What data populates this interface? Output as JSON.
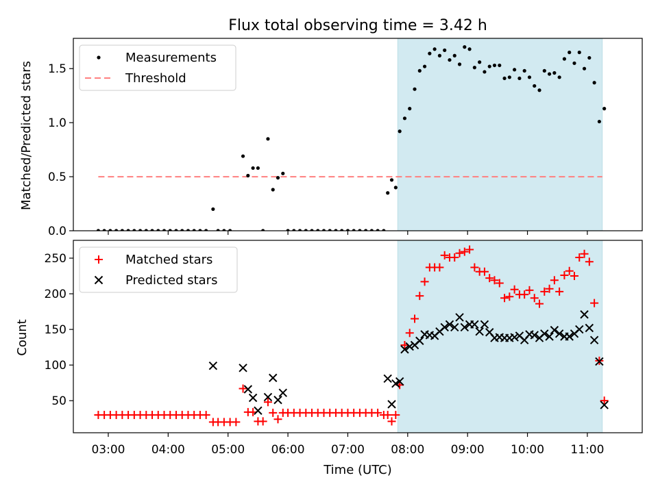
{
  "figure": {
    "title": "Flux total observing time = 3.42 h"
  },
  "colors": {
    "shade": "#add8e6",
    "threshold": "#ff7f7f",
    "matched": "#ff0000",
    "predicted": "#000000",
    "measurement": "#000000"
  },
  "chart_data": [
    {
      "type": "scatter",
      "ylabel": "Matched/Predicted stars",
      "ylim": [
        0,
        1.78
      ],
      "xlim": [
        "02:25",
        "11:55"
      ],
      "yticks": [
        "0.0",
        "0.5",
        "1.0",
        "1.5"
      ],
      "ytick_values": [
        0,
        0.5,
        1.0,
        1.5
      ],
      "legend": {
        "position": "top-left",
        "entries": [
          "Measurements",
          "Threshold"
        ]
      },
      "threshold": 0.5,
      "threshold_range": [
        "02:50",
        "11:15"
      ],
      "shaded_span": [
        "07:50",
        "11:15"
      ],
      "series": [
        {
          "name": "Measurements",
          "points": [
            [
              "02:50",
              0
            ],
            [
              "02:56",
              0
            ],
            [
              "03:02",
              0
            ],
            [
              "03:08",
              0
            ],
            [
              "03:14",
              0
            ],
            [
              "03:20",
              0
            ],
            [
              "03:26",
              0
            ],
            [
              "03:32",
              0
            ],
            [
              "03:38",
              0
            ],
            [
              "03:44",
              0
            ],
            [
              "03:50",
              0
            ],
            [
              "03:56",
              0
            ],
            [
              "04:02",
              0
            ],
            [
              "04:08",
              0
            ],
            [
              "04:14",
              0
            ],
            [
              "04:20",
              0
            ],
            [
              "04:26",
              0
            ],
            [
              "04:32",
              0
            ],
            [
              "04:38",
              0
            ],
            [
              "04:45",
              0.2
            ],
            [
              "04:50",
              0
            ],
            [
              "04:56",
              0
            ],
            [
              "05:02",
              0
            ],
            [
              "05:15",
              0.69
            ],
            [
              "05:20",
              0.51
            ],
            [
              "05:25",
              0.58
            ],
            [
              "05:30",
              0.58
            ],
            [
              "05:35",
              0
            ],
            [
              "05:40",
              0.85
            ],
            [
              "05:45",
              0.38
            ],
            [
              "05:50",
              0.49
            ],
            [
              "05:55",
              0.53
            ],
            [
              "06:00",
              0
            ],
            [
              "06:06",
              0
            ],
            [
              "06:12",
              0
            ],
            [
              "06:18",
              0
            ],
            [
              "06:24",
              0
            ],
            [
              "06:30",
              0
            ],
            [
              "06:36",
              0
            ],
            [
              "06:42",
              0
            ],
            [
              "06:48",
              0
            ],
            [
              "06:54",
              0
            ],
            [
              "07:00",
              0
            ],
            [
              "07:06",
              0
            ],
            [
              "07:12",
              0
            ],
            [
              "07:18",
              0
            ],
            [
              "07:24",
              0
            ],
            [
              "07:30",
              0
            ],
            [
              "07:36",
              0
            ],
            [
              "07:40",
              0.35
            ],
            [
              "07:44",
              0.47
            ],
            [
              "07:48",
              0.4
            ],
            [
              "07:52",
              0.92
            ],
            [
              "07:57",
              1.04
            ],
            [
              "08:02",
              1.13
            ],
            [
              "08:07",
              1.31
            ],
            [
              "08:12",
              1.48
            ],
            [
              "08:17",
              1.52
            ],
            [
              "08:22",
              1.64
            ],
            [
              "08:27",
              1.68
            ],
            [
              "08:32",
              1.62
            ],
            [
              "08:37",
              1.67
            ],
            [
              "08:42",
              1.58
            ],
            [
              "08:47",
              1.62
            ],
            [
              "08:52",
              1.54
            ],
            [
              "08:57",
              1.7
            ],
            [
              "09:02",
              1.68
            ],
            [
              "09:07",
              1.51
            ],
            [
              "09:12",
              1.56
            ],
            [
              "09:17",
              1.47
            ],
            [
              "09:22",
              1.52
            ],
            [
              "09:27",
              1.53
            ],
            [
              "09:32",
              1.53
            ],
            [
              "09:37",
              1.41
            ],
            [
              "09:42",
              1.42
            ],
            [
              "09:47",
              1.49
            ],
            [
              "09:52",
              1.41
            ],
            [
              "09:57",
              1.48
            ],
            [
              "10:02",
              1.42
            ],
            [
              "10:07",
              1.34
            ],
            [
              "10:12",
              1.3
            ],
            [
              "10:17",
              1.48
            ],
            [
              "10:22",
              1.45
            ],
            [
              "10:27",
              1.46
            ],
            [
              "10:32",
              1.42
            ],
            [
              "10:37",
              1.59
            ],
            [
              "10:42",
              1.65
            ],
            [
              "10:47",
              1.55
            ],
            [
              "10:52",
              1.65
            ],
            [
              "10:57",
              1.5
            ],
            [
              "11:02",
              1.6
            ],
            [
              "11:07",
              1.37
            ],
            [
              "11:12",
              1.01
            ],
            [
              "11:17",
              1.13
            ]
          ]
        }
      ]
    },
    {
      "type": "scatter",
      "ylabel": "Count",
      "xlabel": "Time (UTC)",
      "ylim": [
        5,
        275
      ],
      "xlim": [
        "02:25",
        "11:55"
      ],
      "yticks": [
        "50",
        "100",
        "150",
        "200",
        "250"
      ],
      "ytick_values": [
        50,
        100,
        150,
        200,
        250
      ],
      "xticks": [
        "03:00",
        "04:00",
        "05:00",
        "06:00",
        "07:00",
        "08:00",
        "09:00",
        "10:00",
        "11:00"
      ],
      "legend": {
        "position": "top-left",
        "entries": [
          "Matched stars",
          "Predicted stars"
        ]
      },
      "shaded_span": [
        "07:50",
        "11:15"
      ],
      "series": [
        {
          "name": "Matched stars",
          "marker": "plus",
          "points": [
            [
              "02:50",
              30
            ],
            [
              "02:56",
              30
            ],
            [
              "03:02",
              30
            ],
            [
              "03:08",
              30
            ],
            [
              "03:14",
              30
            ],
            [
              "03:20",
              30
            ],
            [
              "03:26",
              30
            ],
            [
              "03:32",
              30
            ],
            [
              "03:38",
              30
            ],
            [
              "03:44",
              30
            ],
            [
              "03:50",
              30
            ],
            [
              "03:56",
              30
            ],
            [
              "04:02",
              30
            ],
            [
              "04:08",
              30
            ],
            [
              "04:14",
              30
            ],
            [
              "04:20",
              30
            ],
            [
              "04:26",
              30
            ],
            [
              "04:32",
              30
            ],
            [
              "04:38",
              30
            ],
            [
              "04:45",
              20
            ],
            [
              "04:50",
              20
            ],
            [
              "04:56",
              20
            ],
            [
              "05:02",
              20
            ],
            [
              "05:08",
              20
            ],
            [
              "05:15",
              67
            ],
            [
              "05:20",
              34
            ],
            [
              "05:25",
              34
            ],
            [
              "05:30",
              21
            ],
            [
              "05:35",
              21
            ],
            [
              "05:40",
              48
            ],
            [
              "05:45",
              33
            ],
            [
              "05:50",
              24
            ],
            [
              "05:55",
              33
            ],
            [
              "06:00",
              33
            ],
            [
              "06:06",
              33
            ],
            [
              "06:12",
              33
            ],
            [
              "06:18",
              33
            ],
            [
              "06:24",
              33
            ],
            [
              "06:30",
              33
            ],
            [
              "06:36",
              33
            ],
            [
              "06:42",
              33
            ],
            [
              "06:48",
              33
            ],
            [
              "06:54",
              33
            ],
            [
              "07:00",
              33
            ],
            [
              "07:06",
              33
            ],
            [
              "07:12",
              33
            ],
            [
              "07:18",
              33
            ],
            [
              "07:24",
              33
            ],
            [
              "07:30",
              33
            ],
            [
              "07:36",
              30
            ],
            [
              "07:40",
              30
            ],
            [
              "07:44",
              21
            ],
            [
              "07:48",
              30
            ],
            [
              "07:52",
              72
            ],
            [
              "07:57",
              128
            ],
            [
              "08:02",
              145
            ],
            [
              "08:07",
              165
            ],
            [
              "08:12",
              197
            ],
            [
              "08:17",
              217
            ],
            [
              "08:22",
              237
            ],
            [
              "08:27",
              237
            ],
            [
              "08:32",
              237
            ],
            [
              "08:37",
              254
            ],
            [
              "08:42",
              251
            ],
            [
              "08:47",
              251
            ],
            [
              "08:52",
              257
            ],
            [
              "08:57",
              259
            ],
            [
              "09:02",
              262
            ],
            [
              "09:07",
              237
            ],
            [
              "09:12",
              231
            ],
            [
              "09:17",
              231
            ],
            [
              "09:22",
              222
            ],
            [
              "09:27",
              219
            ],
            [
              "09:32",
              215
            ],
            [
              "09:37",
              194
            ],
            [
              "09:42",
              196
            ],
            [
              "09:47",
              206
            ],
            [
              "09:52",
              199
            ],
            [
              "09:57",
              199
            ],
            [
              "10:02",
              205
            ],
            [
              "10:07",
              194
            ],
            [
              "10:12",
              186
            ],
            [
              "10:17",
              203
            ],
            [
              "10:22",
              207
            ],
            [
              "10:27",
              219
            ],
            [
              "10:32",
              203
            ],
            [
              "10:37",
              226
            ],
            [
              "10:42",
              232
            ],
            [
              "10:47",
              225
            ],
            [
              "10:52",
              251
            ],
            [
              "10:57",
              256
            ],
            [
              "11:02",
              245
            ],
            [
              "11:07",
              187
            ],
            [
              "11:12",
              106
            ],
            [
              "11:17",
              50
            ]
          ]
        },
        {
          "name": "Predicted stars",
          "marker": "x",
          "points": [
            [
              "04:45",
              99
            ],
            [
              "05:15",
              96
            ],
            [
              "05:20",
              66
            ],
            [
              "05:25",
              54
            ],
            [
              "05:30",
              36
            ],
            [
              "05:40",
              55
            ],
            [
              "05:45",
              82
            ],
            [
              "05:50",
              51
            ],
            [
              "05:55",
              61
            ],
            [
              "07:40",
              81
            ],
            [
              "07:44",
              45
            ],
            [
              "07:48",
              74
            ],
            [
              "07:52",
              77
            ],
            [
              "07:57",
              122
            ],
            [
              "08:02",
              126
            ],
            [
              "08:07",
              128
            ],
            [
              "08:12",
              134
            ],
            [
              "08:17",
              143
            ],
            [
              "08:22",
              142
            ],
            [
              "08:27",
              141
            ],
            [
              "08:32",
              147
            ],
            [
              "08:37",
              153
            ],
            [
              "08:42",
              157
            ],
            [
              "08:47",
              153
            ],
            [
              "08:52",
              167
            ],
            [
              "08:57",
              153
            ],
            [
              "09:02",
              157
            ],
            [
              "09:07",
              157
            ],
            [
              "09:12",
              147
            ],
            [
              "09:17",
              157
            ],
            [
              "09:22",
              146
            ],
            [
              "09:27",
              138
            ],
            [
              "09:32",
              139
            ],
            [
              "09:37",
              138
            ],
            [
              "09:42",
              138
            ],
            [
              "09:47",
              139
            ],
            [
              "09:52",
              141
            ],
            [
              "09:57",
              135
            ],
            [
              "10:02",
              143
            ],
            [
              "10:07",
              142
            ],
            [
              "10:12",
              138
            ],
            [
              "10:17",
              144
            ],
            [
              "10:22",
              140
            ],
            [
              "10:27",
              149
            ],
            [
              "10:32",
              144
            ],
            [
              "10:37",
              140
            ],
            [
              "10:42",
              140
            ],
            [
              "10:47",
              144
            ],
            [
              "10:52",
              150
            ],
            [
              "10:57",
              171
            ],
            [
              "11:02",
              152
            ],
            [
              "11:07",
              135
            ],
            [
              "11:12",
              105
            ],
            [
              "11:17",
              44
            ]
          ]
        }
      ]
    }
  ]
}
